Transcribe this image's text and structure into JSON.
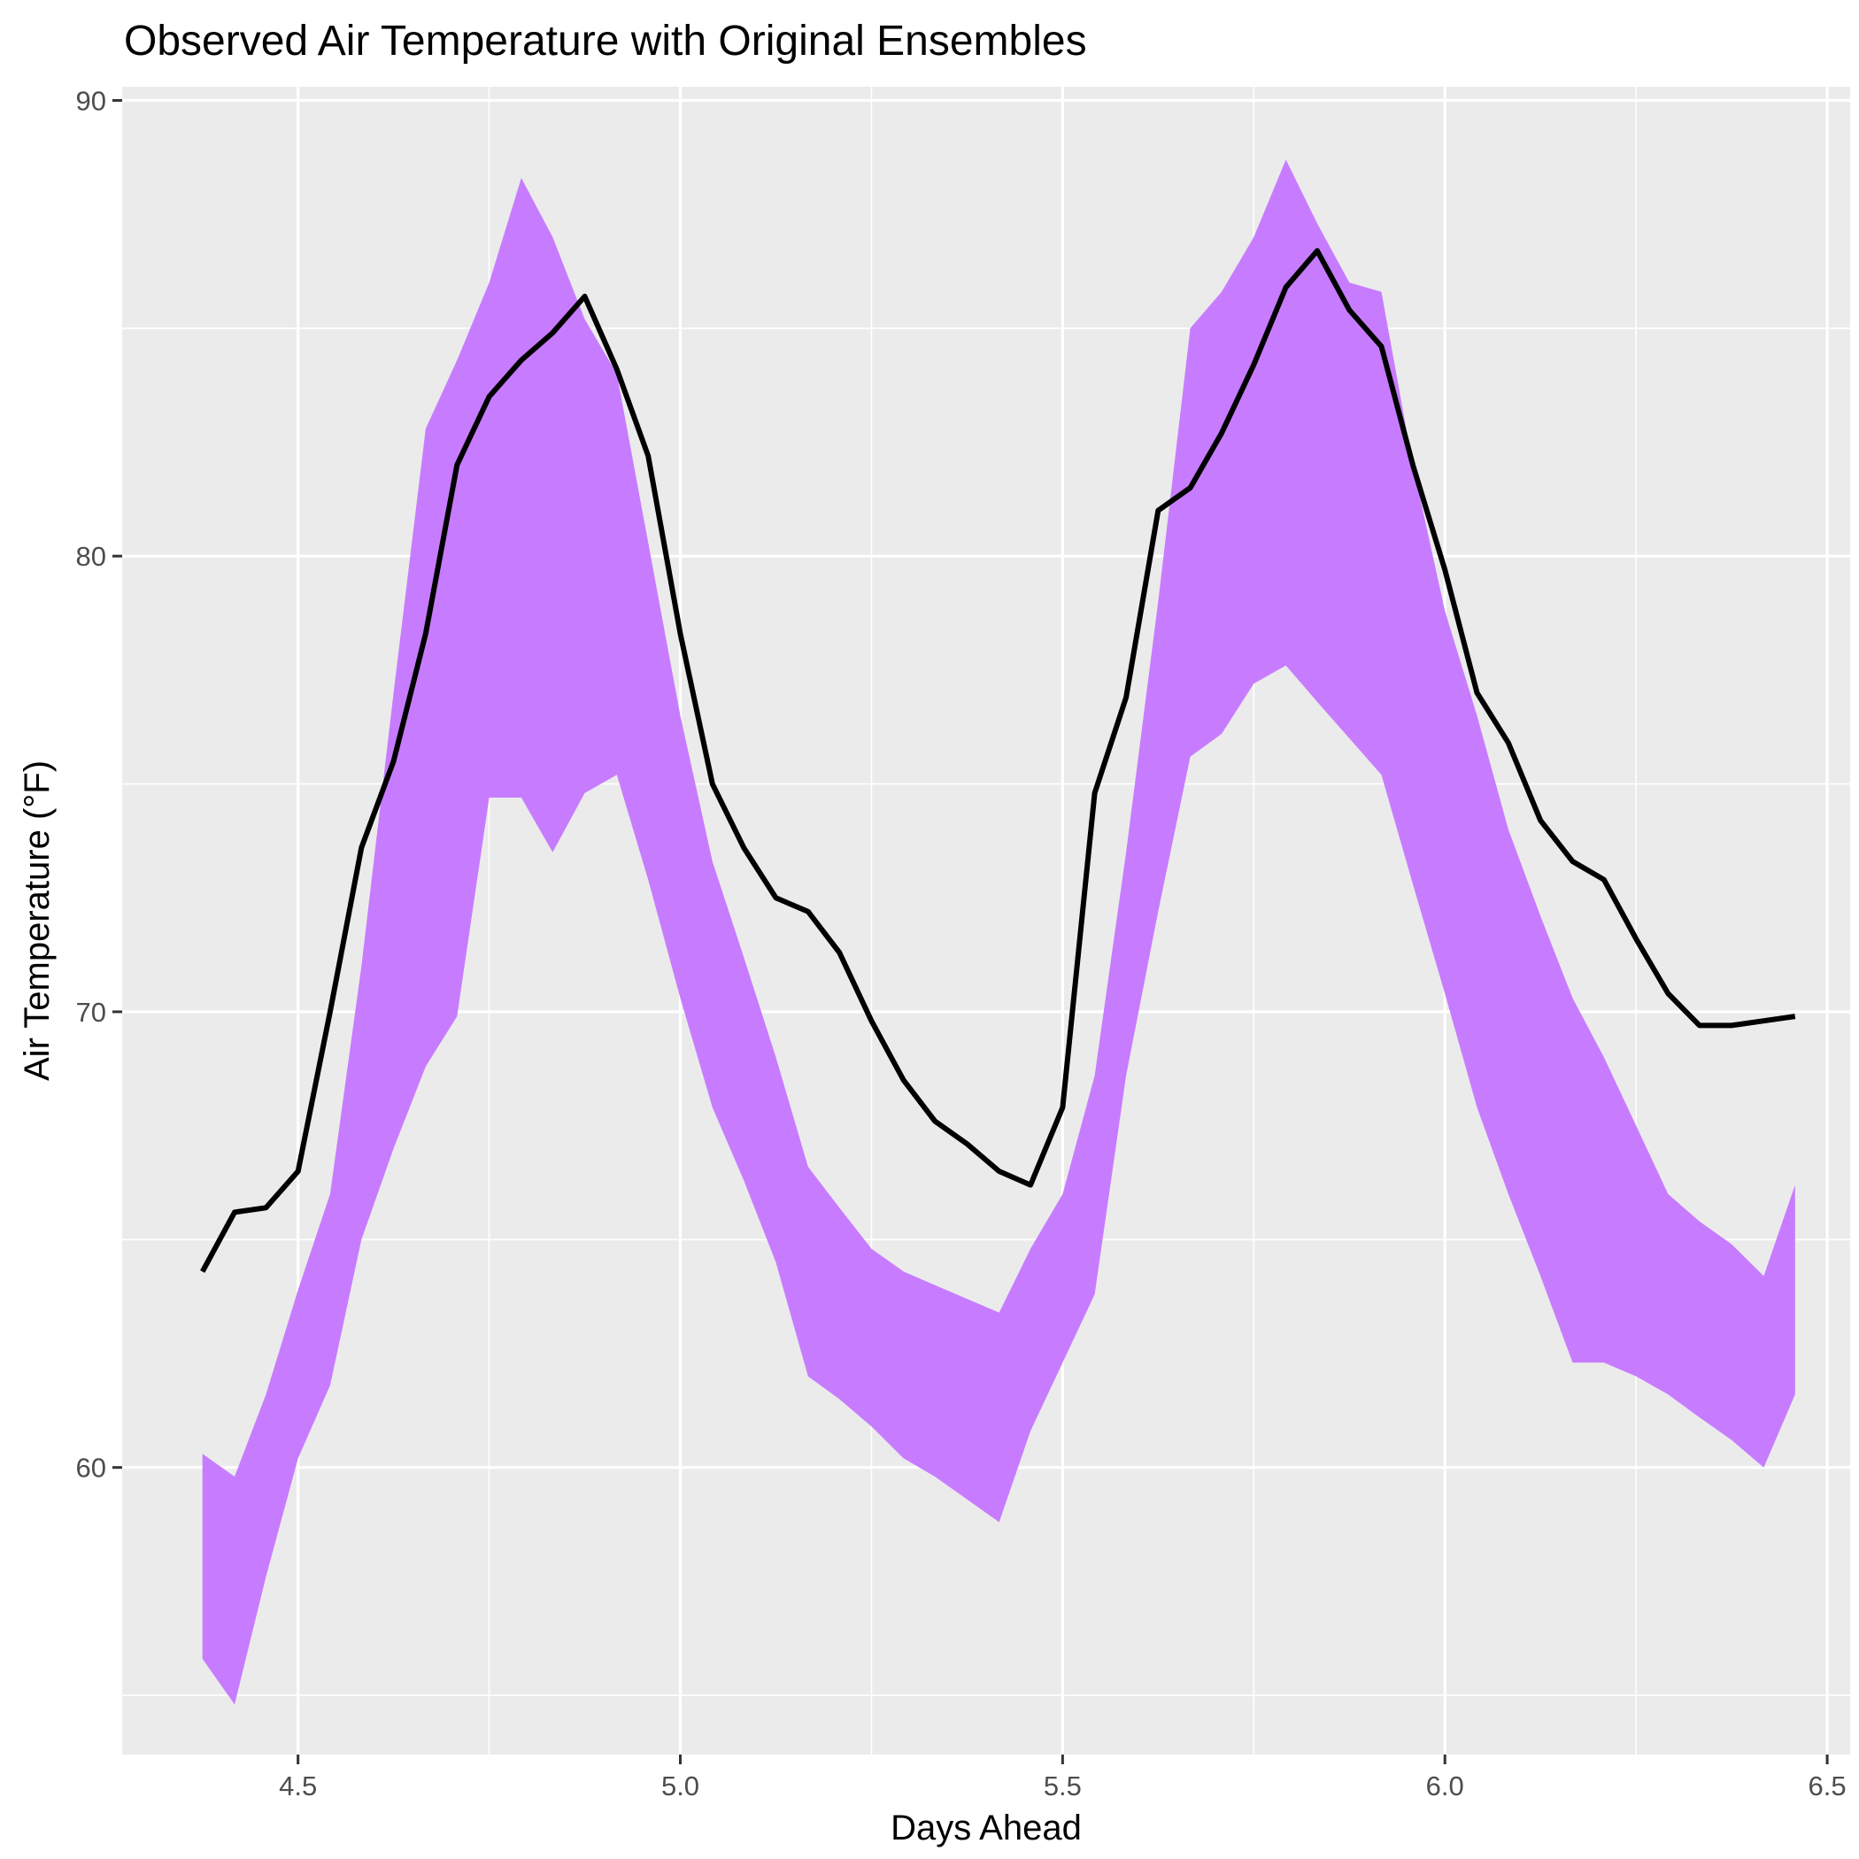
{
  "chart_data": {
    "type": "area",
    "title": "Observed Air Temperature with Original Ensembles",
    "xlabel": "Days Ahead",
    "ylabel": "Air Temperature (°F)",
    "xlim": [
      4.27,
      6.53
    ],
    "ylim": [
      53.7,
      90.3
    ],
    "x_ticks": [
      4.5,
      5.0,
      5.5,
      6.0,
      6.5
    ],
    "x_tick_labels": [
      "4.5",
      "5.0",
      "5.5",
      "6.0",
      "6.5"
    ],
    "y_ticks": [
      60,
      70,
      80,
      90
    ],
    "y_tick_labels": [
      "60",
      "70",
      "80",
      "90"
    ],
    "grid": true,
    "legend": "none",
    "colors": {
      "panel": "#ebebeb",
      "grid": "#ffffff",
      "ribbon": "#c77cff",
      "line": "#000000"
    },
    "series": [
      {
        "kind": "ribbon",
        "x": [
          4.375,
          4.417,
          4.458,
          4.5,
          4.542,
          4.583,
          4.625,
          4.667,
          4.708,
          4.75,
          4.792,
          4.833,
          4.875,
          4.917,
          4.958,
          5.0,
          5.042,
          5.083,
          5.125,
          5.167,
          5.208,
          5.25,
          5.292,
          5.333,
          5.375,
          5.417,
          5.458,
          5.5,
          5.542,
          5.583,
          5.625,
          5.667,
          5.708,
          5.75,
          5.792,
          5.833,
          5.875,
          5.917,
          5.958,
          6.0,
          6.042,
          6.083,
          6.125,
          6.167,
          6.208,
          6.25,
          6.292,
          6.333,
          6.375,
          6.417,
          6.458
        ],
        "upper": [
          60.3,
          59.8,
          61.6,
          63.9,
          66.0,
          71.0,
          77.0,
          82.8,
          84.3,
          86.0,
          88.3,
          87.0,
          85.2,
          84.0,
          80.3,
          76.5,
          73.3,
          71.2,
          69.0,
          66.6,
          65.7,
          64.8,
          64.3,
          64.0,
          63.7,
          63.4,
          64.8,
          66.0,
          68.6,
          73.5,
          79.0,
          85.0,
          85.8,
          87.0,
          88.7,
          87.3,
          86.0,
          85.8,
          82.0,
          78.8,
          76.5,
          74.0,
          72.1,
          70.3,
          69.0,
          67.5,
          66.0,
          65.4,
          64.9,
          64.2,
          66.2
        ],
        "lower": [
          55.8,
          54.8,
          57.6,
          60.2,
          61.8,
          65.0,
          67.0,
          68.8,
          69.9,
          74.7,
          74.7,
          73.5,
          74.8,
          75.2,
          72.9,
          70.3,
          67.9,
          66.3,
          64.5,
          62.0,
          61.5,
          60.9,
          60.2,
          59.8,
          59.3,
          58.8,
          60.8,
          62.3,
          63.8,
          68.6,
          72.2,
          75.6,
          76.1,
          77.2,
          77.6,
          76.8,
          76.0,
          75.2,
          72.8,
          70.4,
          67.9,
          66.0,
          64.2,
          62.3,
          62.3,
          62.0,
          61.6,
          61.1,
          60.6,
          60.0,
          61.6
        ]
      },
      {
        "kind": "line",
        "x": [
          4.375,
          4.417,
          4.458,
          4.5,
          4.542,
          4.583,
          4.625,
          4.667,
          4.708,
          4.75,
          4.792,
          4.833,
          4.875,
          4.917,
          4.958,
          5.0,
          5.042,
          5.083,
          5.125,
          5.167,
          5.208,
          5.25,
          5.292,
          5.333,
          5.375,
          5.417,
          5.458,
          5.5,
          5.542,
          5.583,
          5.625,
          5.667,
          5.708,
          5.75,
          5.792,
          5.833,
          5.875,
          5.917,
          5.958,
          6.0,
          6.042,
          6.083,
          6.125,
          6.167,
          6.208,
          6.25,
          6.292,
          6.333,
          6.375,
          6.417,
          6.458
        ],
        "values": [
          64.3,
          65.6,
          65.7,
          66.5,
          70.0,
          73.6,
          75.5,
          78.3,
          82.0,
          83.5,
          84.3,
          84.9,
          85.7,
          84.1,
          82.2,
          78.3,
          75.0,
          73.6,
          72.5,
          72.2,
          71.3,
          69.8,
          68.5,
          67.6,
          67.1,
          66.5,
          66.2,
          67.9,
          74.8,
          76.9,
          81.0,
          81.5,
          82.7,
          84.2,
          85.9,
          86.7,
          85.4,
          84.6,
          82.0,
          79.7,
          77.0,
          75.9,
          74.2,
          73.3,
          72.9,
          71.6,
          70.4,
          69.7,
          69.7,
          69.8,
          69.9
        ]
      }
    ]
  }
}
